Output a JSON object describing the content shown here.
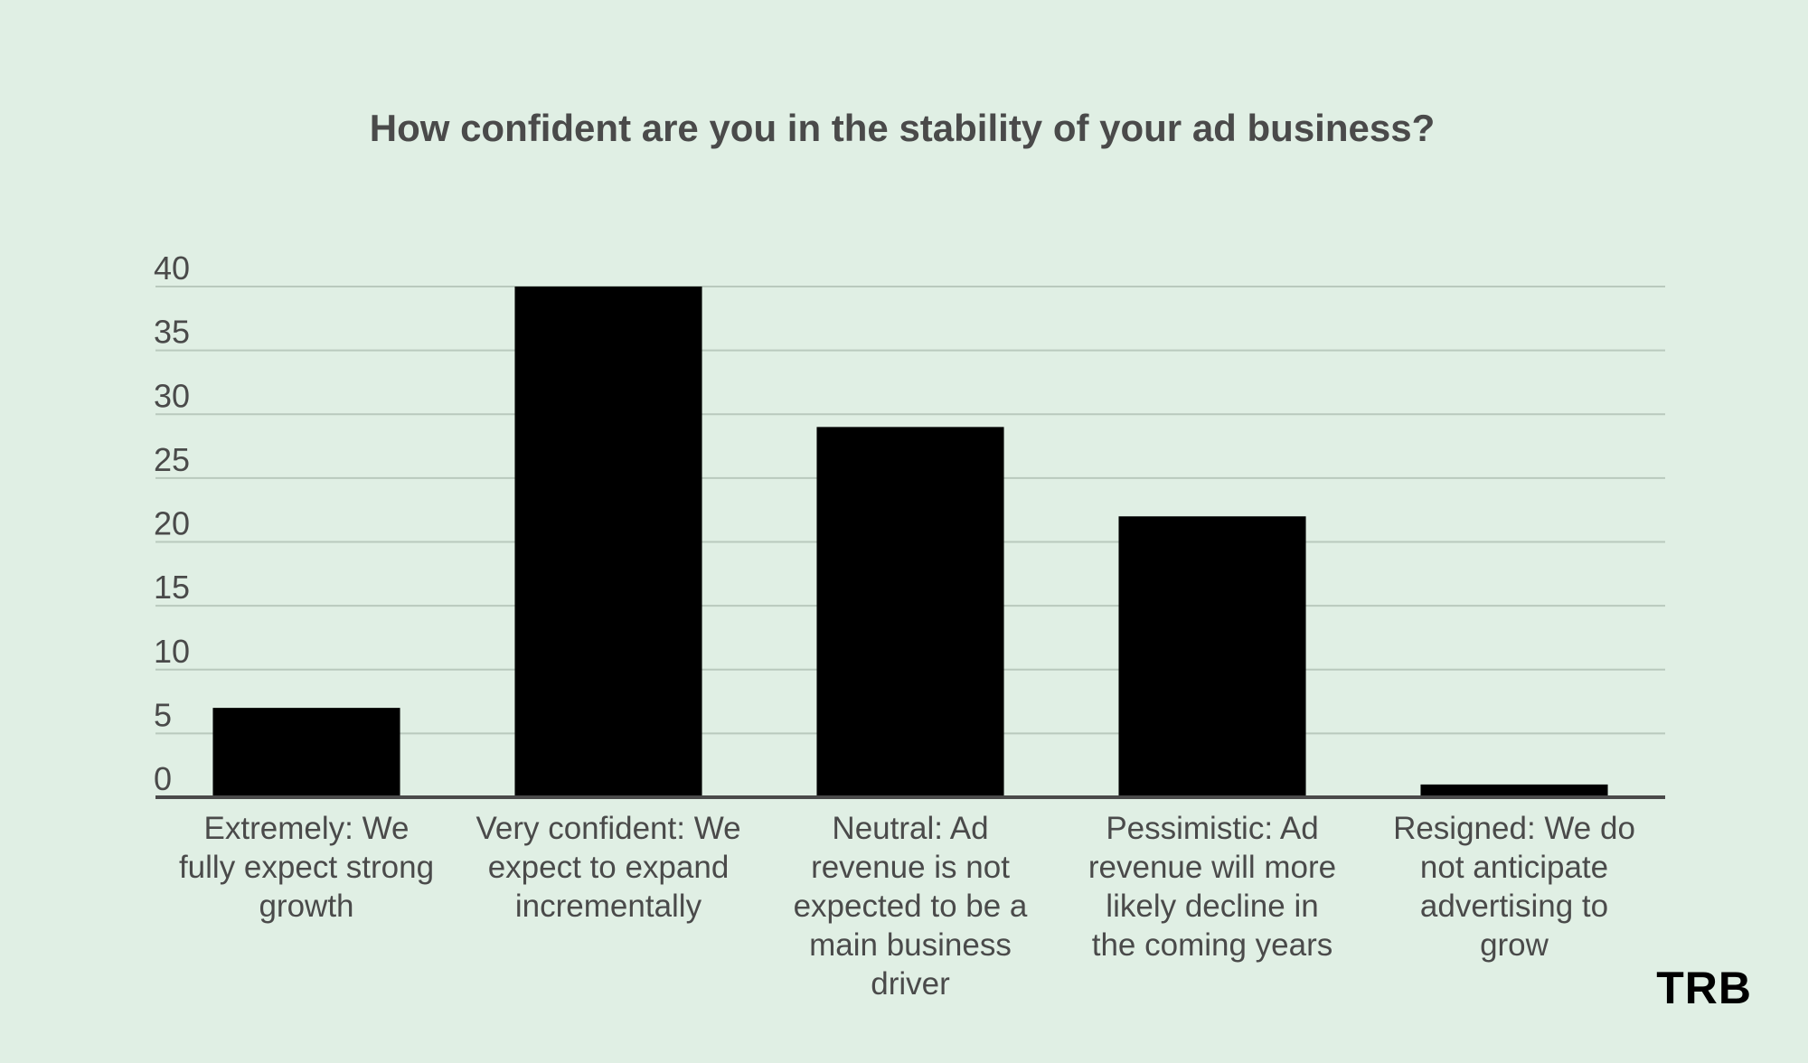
{
  "brand": {
    "logo_text": "TRB"
  },
  "chart_data": {
    "type": "bar",
    "title": "How confident are you in the stability of your ad business?",
    "xlabel": "",
    "ylabel": "",
    "ylim": [
      0,
      40
    ],
    "yticks": [
      0,
      5,
      10,
      15,
      20,
      25,
      30,
      35,
      40
    ],
    "grid": true,
    "legend": "none",
    "bar_color": "#000000",
    "categories": [
      "Extremely: We fully expect strong growth",
      "Very confident: We expect to expand incrementally",
      "Neutral: Ad revenue is not expected to be a main business driver",
      "Pessimistic: Ad revenue will more likely decline in the coming years",
      "Resigned: We do not anticipate advertising to grow"
    ],
    "category_lines": [
      [
        "Extremely: We",
        "fully expect strong",
        "growth"
      ],
      [
        "Very confident: We",
        "expect to expand",
        "incrementally"
      ],
      [
        "Neutral: Ad",
        "revenue is not",
        "expected to be a",
        "main business",
        "driver"
      ],
      [
        "Pessimistic: Ad",
        "revenue will more",
        "likely decline in",
        "the coming years"
      ],
      [
        "Resigned: We do",
        "not anticipate",
        "advertising to",
        "grow"
      ]
    ],
    "values": [
      7,
      40,
      29,
      22,
      1
    ]
  }
}
